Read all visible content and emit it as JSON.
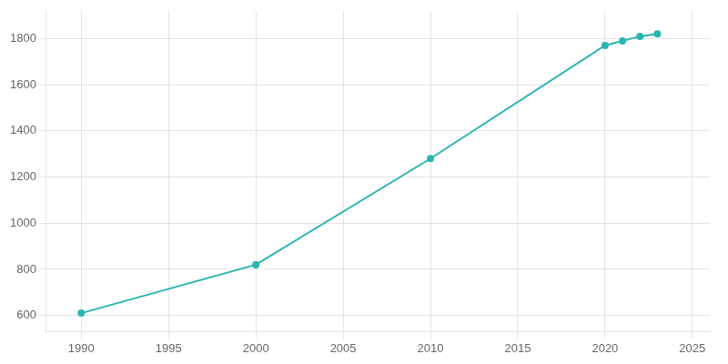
{
  "chart_data": {
    "type": "line",
    "x": [
      1990,
      2000,
      2010,
      2020,
      2021,
      2022,
      2023
    ],
    "values": [
      610,
      820,
      1280,
      1770,
      1790,
      1810,
      1820
    ],
    "color": "#2ab5b0",
    "marker": "circle",
    "xlim": [
      1988,
      2026
    ],
    "xticks": [
      1990,
      1995,
      2000,
      2005,
      2010,
      2015,
      2020,
      2025
    ],
    "ylim": [
      530,
      1920
    ],
    "yticks": [
      600,
      800,
      1000,
      1200,
      1400,
      1600,
      1800
    ],
    "grid": true
  }
}
